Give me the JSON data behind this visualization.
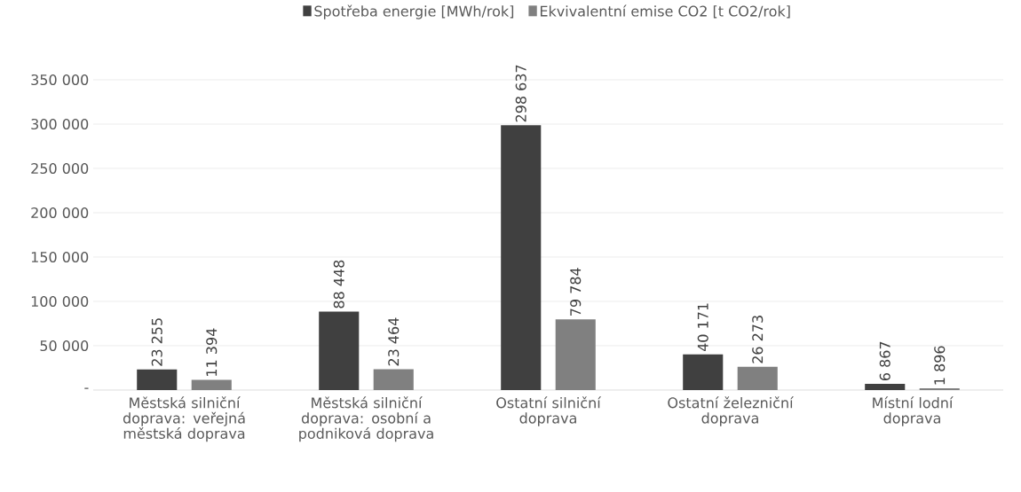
{
  "chart_data": {
    "type": "bar",
    "categories": [
      "Městská silniční doprava: veřejná městská doprava",
      "Městská silniční doprava: osobní a podniková doprava",
      "Ostatní silniční doprava",
      "Ostatní železniční doprava",
      "Místní lodní doprava"
    ],
    "series": [
      {
        "name": "Spotřeba energie [MWh/rok]",
        "color": "#404040",
        "values": [
          23255,
          88448,
          298637,
          40171,
          6867
        ],
        "value_labels": [
          "23 255",
          "88 448",
          "298 637",
          "40 171",
          "6 867"
        ]
      },
      {
        "name": "Ekvivalentní emise CO2 [t CO2/rok]",
        "color": "#808080",
        "values": [
          11394,
          23464,
          79784,
          26273,
          1896
        ],
        "value_labels": [
          "11 394",
          "23 464",
          "79 784",
          "26 273",
          "1 896"
        ]
      }
    ],
    "ylim": [
      0,
      350000
    ],
    "yticks": [
      {
        "value": 0,
        "label": "-"
      },
      {
        "value": 50000,
        "label": "50 000"
      },
      {
        "value": 100000,
        "label": "100 000"
      },
      {
        "value": 150000,
        "label": "150 000"
      },
      {
        "value": 200000,
        "label": "200 000"
      },
      {
        "value": 250000,
        "label": "250 000"
      },
      {
        "value": 300000,
        "label": "300 000"
      },
      {
        "value": 350000,
        "label": "350 000"
      }
    ],
    "grid": "y",
    "legend": "top"
  }
}
